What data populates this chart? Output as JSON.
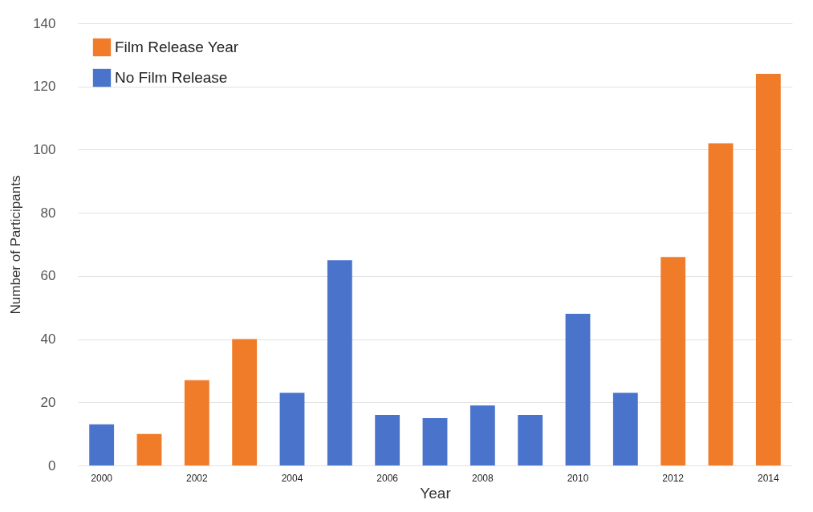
{
  "chart_data": {
    "type": "bar",
    "xlabel": "Year",
    "ylabel": "Number of Participants",
    "categories": [
      "2000",
      null,
      "2002",
      null,
      "2004",
      null,
      "2006",
      null,
      "2008",
      null,
      "2010",
      null,
      "2012",
      null,
      "2014"
    ],
    "series": [
      {
        "name": "Film Release Year",
        "color": "#f07c2a",
        "values": [
          null,
          10,
          27,
          40,
          null,
          null,
          null,
          null,
          null,
          null,
          null,
          null,
          66,
          102,
          124
        ]
      },
      {
        "name": "No Film Release",
        "color": "#4a74cc",
        "values": [
          13,
          null,
          null,
          null,
          23,
          65,
          16,
          15,
          19,
          16,
          48,
          23,
          null,
          null,
          null
        ]
      }
    ],
    "ylim": [
      0,
      140
    ],
    "yticks": [
      0,
      20,
      40,
      60,
      80,
      100,
      120,
      140
    ],
    "grid": "y",
    "legend": "top left"
  }
}
